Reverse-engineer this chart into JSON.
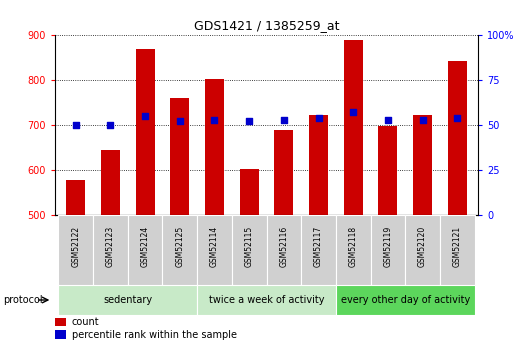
{
  "title": "GDS1421 / 1385259_at",
  "samples": [
    "GSM52122",
    "GSM52123",
    "GSM52124",
    "GSM52125",
    "GSM52114",
    "GSM52115",
    "GSM52116",
    "GSM52117",
    "GSM52118",
    "GSM52119",
    "GSM52120",
    "GSM52121"
  ],
  "counts": [
    578,
    645,
    868,
    760,
    803,
    603,
    690,
    723,
    890,
    697,
    723,
    843
  ],
  "percentiles": [
    50,
    50,
    55,
    52,
    53,
    52,
    53,
    54,
    57,
    53,
    53,
    54
  ],
  "ylim_left": [
    500,
    900
  ],
  "ylim_right": [
    0,
    100
  ],
  "yticks_left": [
    500,
    600,
    700,
    800,
    900
  ],
  "yticks_right": [
    0,
    25,
    50,
    75,
    100
  ],
  "bar_color": "#cc0000",
  "dot_color": "#0000cc",
  "group_starts": [
    0,
    4,
    8
  ],
  "group_ends": [
    4,
    8,
    12
  ],
  "group_labels": [
    "sedentary",
    "twice a week of activity",
    "every other day of activity"
  ],
  "group_colors": [
    "#c8eac8",
    "#c8eac8",
    "#5cd65c"
  ],
  "sample_box_color": "#d0d0d0",
  "protocol_label": "protocol",
  "legend_count": "count",
  "legend_percentile": "percentile rank within the sample",
  "background_color": "#ffffff",
  "bar_width": 0.55
}
